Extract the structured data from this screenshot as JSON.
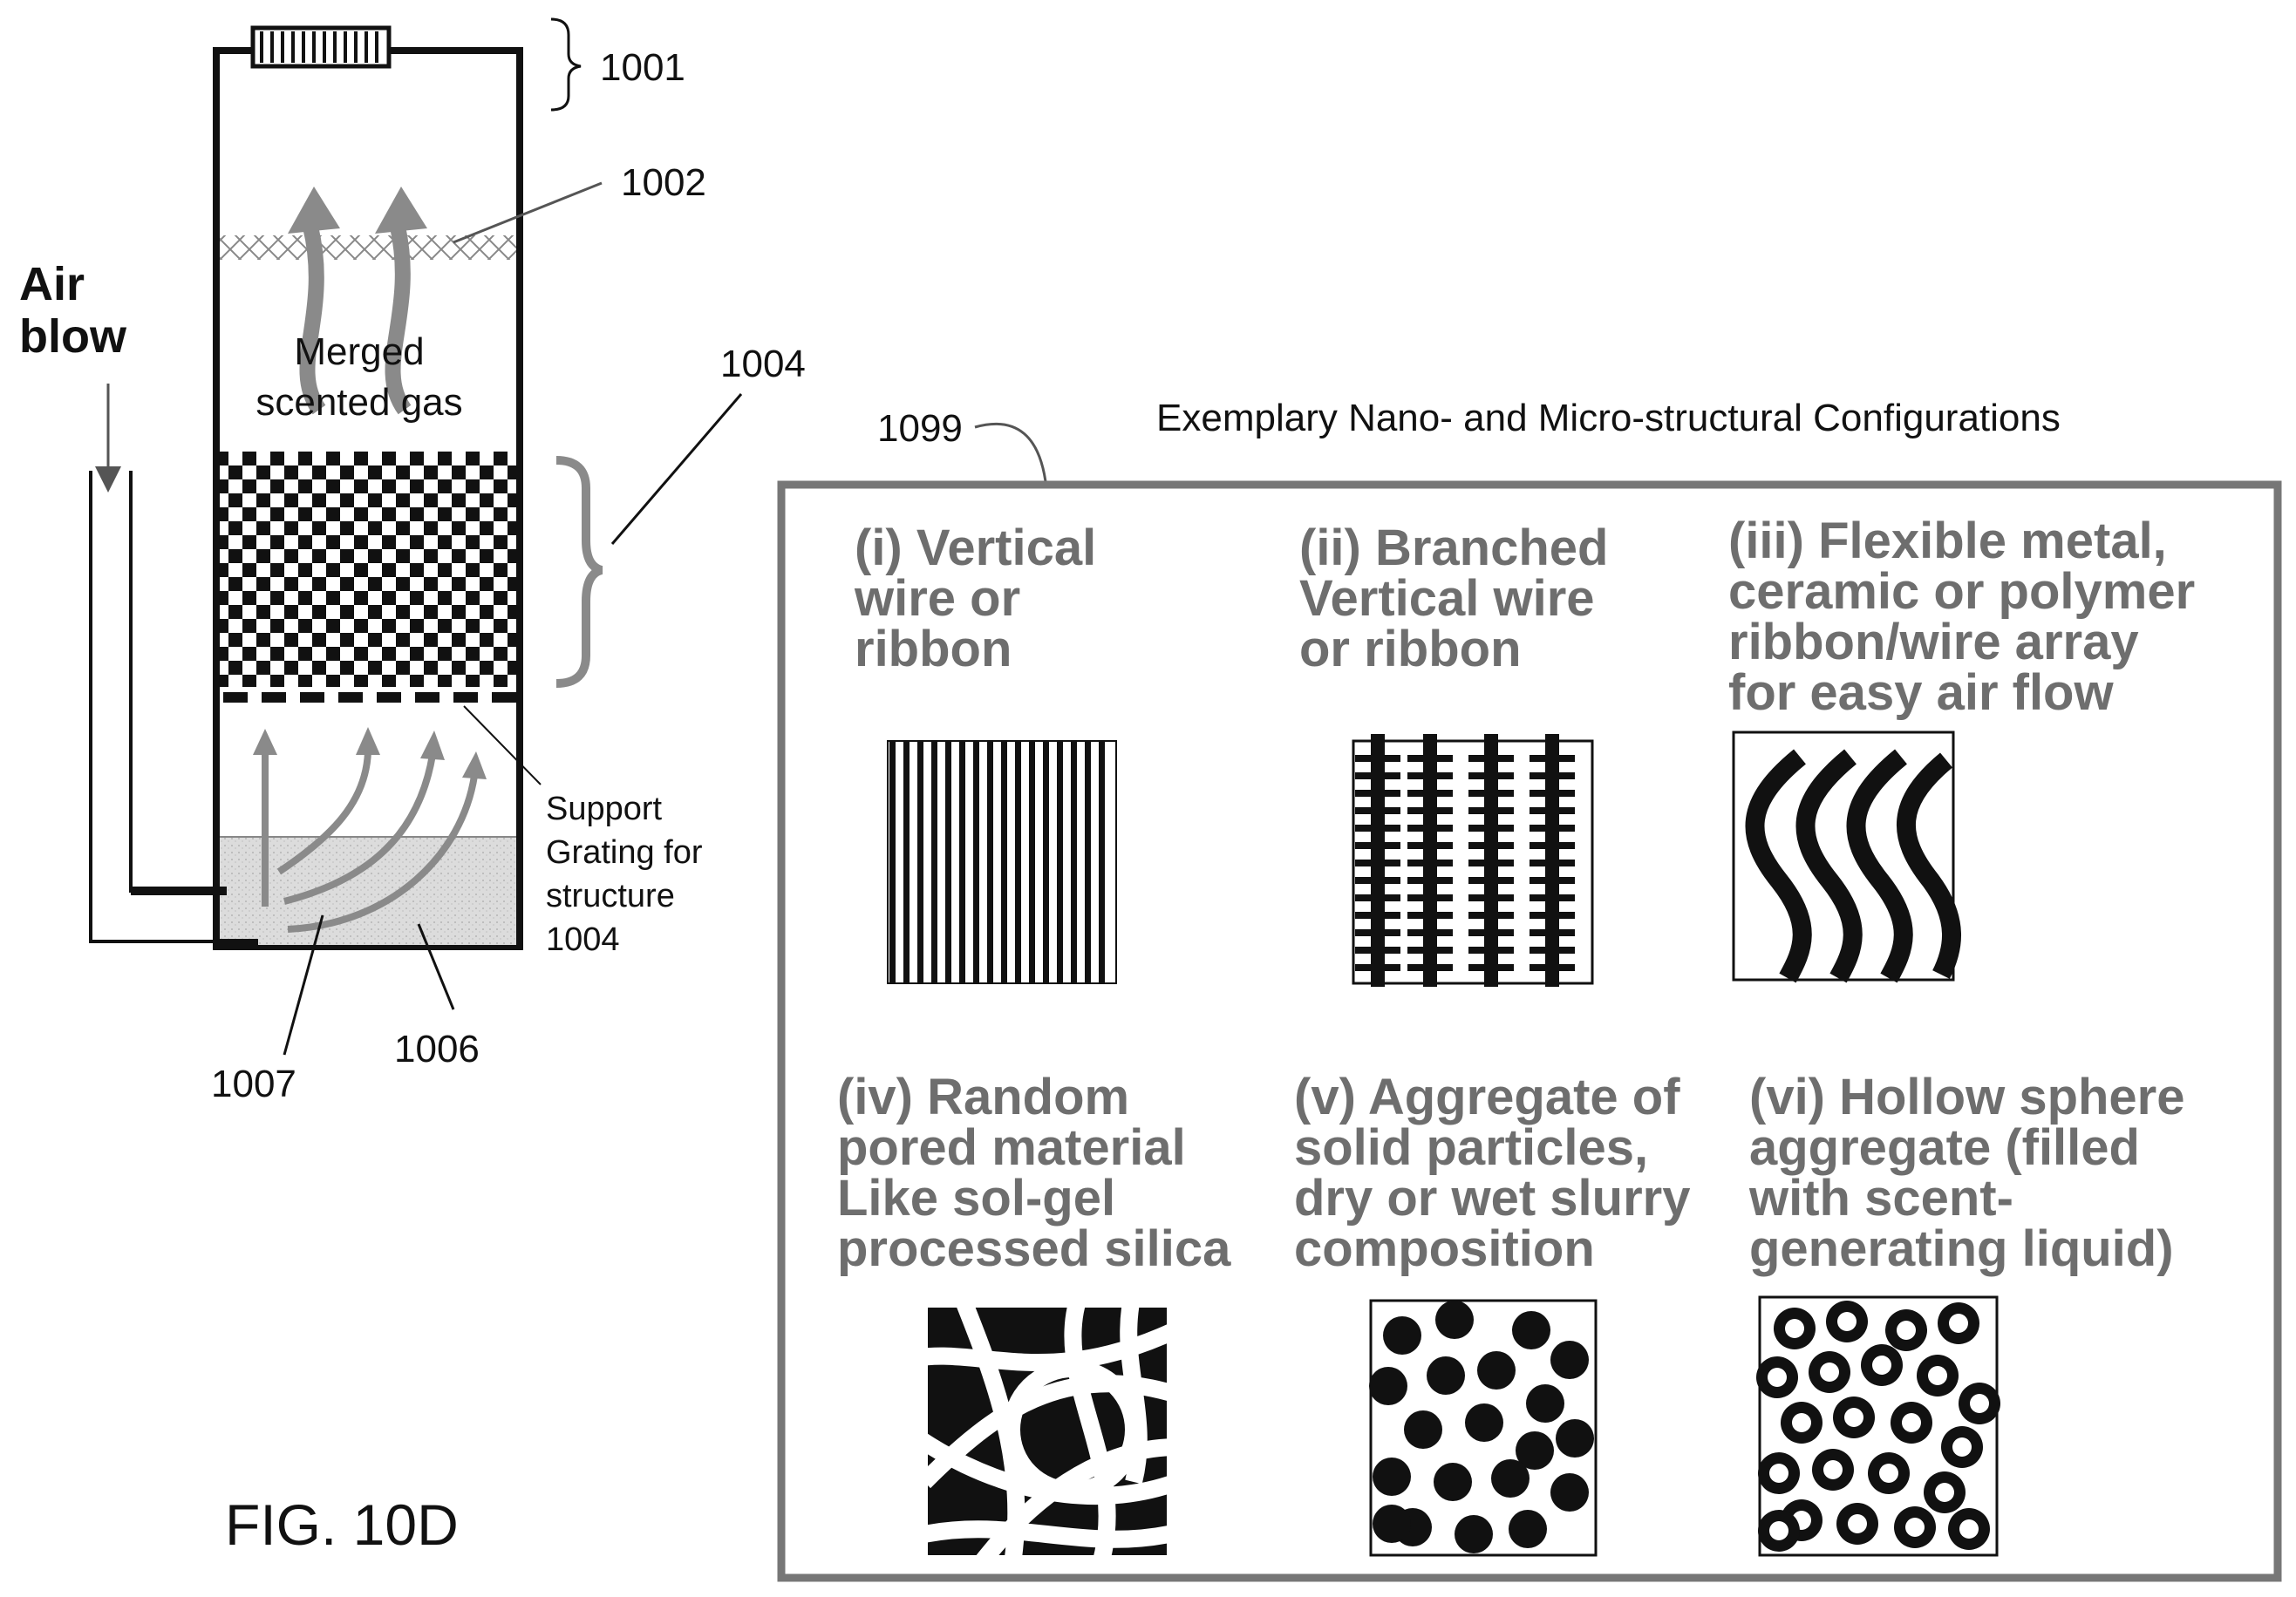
{
  "figure_label": "FIG. 10D",
  "device": {
    "ref_top": "1001",
    "ref_mesh": "1002",
    "ref_structure": "1004",
    "ref_inlet": "1007",
    "ref_liquid": "1006",
    "air_blow_line1": "Air",
    "air_blow_line2": "blow",
    "merged_line1": "Merged",
    "merged_line2": "scented gas",
    "support_line1": "Support",
    "support_line2": "Grating for",
    "support_line3": "structure",
    "support_line4": "1004"
  },
  "panel": {
    "ref": "1099",
    "title": "Exemplary Nano- and Micro-structural Configurations",
    "items": [
      {
        "lines": [
          "(i) Vertical",
          "wire or",
          "ribbon"
        ],
        "icon": "vertical-wires-icon"
      },
      {
        "lines": [
          "(ii) Branched",
          "Vertical wire",
          "or ribbon"
        ],
        "icon": "branched-wires-icon"
      },
      {
        "lines": [
          "(iii) Flexible metal,",
          "ceramic or polymer",
          "ribbon/wire array",
          "for easy air flow"
        ],
        "icon": "wavy-ribbons-icon"
      },
      {
        "lines": [
          "(iv) Random",
          "pored material",
          "Like sol-gel",
          "processed silica"
        ],
        "icon": "random-pores-icon"
      },
      {
        "lines": [
          "(v) Aggregate of",
          "solid particles,",
          "dry or wet slurry",
          "composition"
        ],
        "icon": "solid-particles-icon"
      },
      {
        "lines": [
          "(vi) Hollow sphere",
          "aggregate (filled",
          "with scent-",
          "generating liquid)"
        ],
        "icon": "hollow-spheres-icon"
      }
    ]
  },
  "colors": {
    "ink": "#111111",
    "caption_gray": "#6e6e6e",
    "arrow_gray": "#8a8a8a",
    "panel_border": "#777777",
    "liquid_fill": "#d9d9d9"
  }
}
